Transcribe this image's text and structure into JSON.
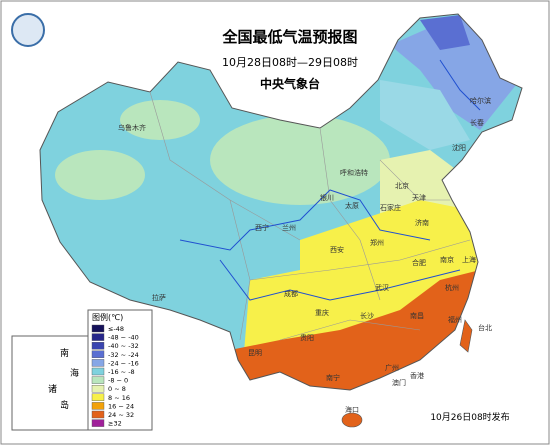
{
  "header": {
    "title": "全国最低气温预报图",
    "subtitle": "10月28日08时—29日08时",
    "agency": "中央气象台"
  },
  "legend": {
    "title": "图例(℃)",
    "items": [
      {
        "label": "≤-48",
        "color": "#15115a"
      },
      {
        "label": "-48 ~ -40",
        "color": "#26268a"
      },
      {
        "label": "-40 ~ -32",
        "color": "#3a45b0"
      },
      {
        "label": "-32 ~ -24",
        "color": "#5a6fd2"
      },
      {
        "label": "-24 ~ -16",
        "color": "#86a6e6"
      },
      {
        "label": "-16 ~ -8",
        "color": "#7fd2de"
      },
      {
        "label": "-8 ~ 0",
        "color": "#b9e6bd"
      },
      {
        "label": "0 ~ 8",
        "color": "#e6f2b0"
      },
      {
        "label": "8 ~ 16",
        "color": "#f7f04a"
      },
      {
        "label": "16 ~ 24",
        "color": "#f2a20a"
      },
      {
        "label": "24 ~ 32",
        "color": "#e2621a"
      },
      {
        "label": "≥32",
        "color": "#a0209a"
      }
    ]
  },
  "inset": {
    "labels": [
      "南",
      "海",
      "诸",
      "岛"
    ]
  },
  "cities": [
    "乌鲁木齐",
    "哈尔滨",
    "长春",
    "沈阳",
    "呼和浩特",
    "北京",
    "天津",
    "石家庄",
    "太原",
    "济南",
    "银川",
    "兰州",
    "西宁",
    "西安",
    "郑州",
    "合肥",
    "南京",
    "上海",
    "杭州",
    "武汉",
    "拉萨",
    "成都",
    "重庆",
    "长沙",
    "南昌",
    "福州",
    "台北",
    "贵阳",
    "昆明",
    "南宁",
    "广州",
    "香港",
    "澳门",
    "海口"
  ],
  "footer": "10月26日08时发布"
}
